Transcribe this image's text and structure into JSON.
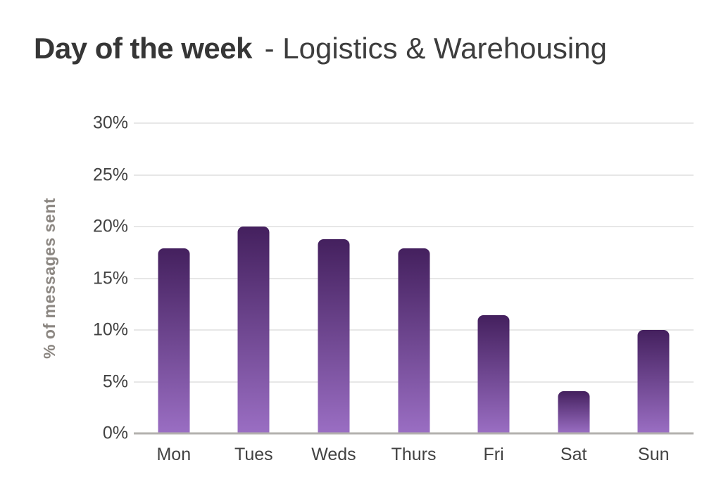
{
  "title": {
    "main": "Day of the week",
    "subtitle": "- Logistics & Warehousing"
  },
  "chart_data": {
    "type": "bar",
    "title": "Day of the week - Logistics & Warehousing",
    "categories": [
      "Mon",
      "Tues",
      "Weds",
      "Thurs",
      "Fri",
      "Sat",
      "Sun"
    ],
    "values": [
      17.9,
      20.0,
      18.8,
      17.9,
      11.4,
      4.1,
      10.0
    ],
    "xlabel": "",
    "ylabel": "% of messages sent",
    "ylim": [
      0,
      30
    ],
    "yticks": [
      {
        "value": 0,
        "label": "0%"
      },
      {
        "value": 5,
        "label": "5%"
      },
      {
        "value": 10,
        "label": "10%"
      },
      {
        "value": 15,
        "label": "15%"
      },
      {
        "value": 20,
        "label": "20%"
      },
      {
        "value": 25,
        "label": "25%"
      },
      {
        "value": 30,
        "label": "30%"
      }
    ],
    "grid": "horizontal",
    "legend": "none"
  },
  "colors": {
    "title_text": "#363636",
    "subtitle_text": "#3d3d3d",
    "tick_text": "#424242",
    "axis_label_text": "#8b8681",
    "gridline": "#e7e7e7",
    "axis_line": "#b3b1ae",
    "bar_gradient_top": "#44205e",
    "bar_gradient_bottom": "#9a6ec3"
  }
}
